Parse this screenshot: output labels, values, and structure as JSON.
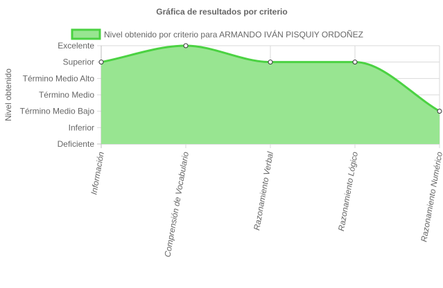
{
  "chart_data": {
    "type": "area",
    "title": "Gráfica de resultados por criterio",
    "ylabel": "Nivel obtenido",
    "xlabel": "",
    "levels": [
      "Deficiente",
      "Inferior",
      "Término Medio Bajo",
      "Término Medio",
      "Término Medio Alto",
      "Superior",
      "Excelente"
    ],
    "categories": [
      "Información",
      "Comprensión de Vocabulario",
      "Razonamiento Verbal",
      "Razonamiento Lógico",
      "Razonamiento Numérico"
    ],
    "series": [
      {
        "name": "Nivel obtenido por criterio para ARMANDO IVÁN PISQUIY ORDOÑEZ",
        "values": [
          5,
          6,
          5,
          5,
          2
        ],
        "value_labels": [
          "Superior",
          "Excelente",
          "Superior",
          "Superior",
          "Término Medio Bajo"
        ]
      }
    ],
    "ylim": [
      0,
      6
    ],
    "grid": true,
    "legend_position": "top",
    "colors": {
      "fill": "#98e591",
      "stroke": "#4bd242",
      "point_fill": "#ffffff",
      "point_stroke": "#333333",
      "grid": "#d9d9d9",
      "grid_strong": "#bdbdbd",
      "text": "#666666"
    }
  }
}
